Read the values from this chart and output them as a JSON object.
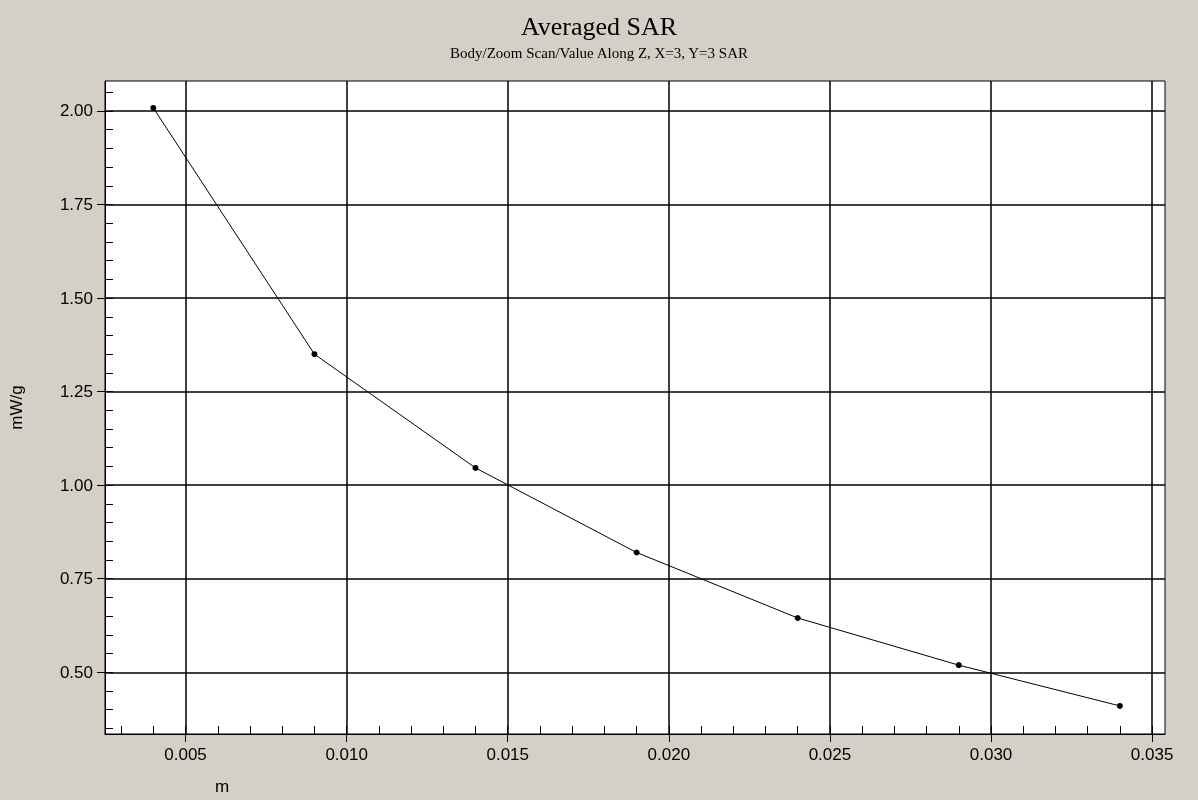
{
  "chart_data": {
    "type": "line",
    "title": "Averaged SAR",
    "subtitle": "Body/Zoom Scan/Value Along Z, X=3, Y=3 SAR",
    "xlabel": "m",
    "ylabel": "mW/g",
    "x": [
      0.004,
      0.009,
      0.014,
      0.019,
      0.024,
      0.029,
      0.034
    ],
    "series": [
      {
        "color": "#000000",
        "values": [
          2.008,
          1.35,
          1.046,
          0.82,
          0.645,
          0.519,
          0.41
        ]
      }
    ],
    "xlim": [
      0.0025,
      0.0354
    ],
    "ylim": [
      0.335,
      2.08
    ],
    "xticks": [
      {
        "value": 0.003,
        "label": null
      },
      {
        "value": 0.004,
        "label": null
      },
      0.005,
      {
        "value": 0.006,
        "label": null
      },
      {
        "value": 0.007,
        "label": null
      },
      {
        "value": 0.008,
        "label": null
      },
      {
        "value": 0.009,
        "label": null
      },
      {
        "value": 0.01,
        "label": "0.010"
      },
      {
        "value": 0.011,
        "label": null
      },
      {
        "value": 0.012,
        "label": null
      },
      {
        "value": 0.013,
        "label": null
      },
      {
        "value": 0.014,
        "label": null
      },
      0.015,
      {
        "value": 0.016,
        "label": null
      },
      {
        "value": 0.017,
        "label": null
      },
      {
        "value": 0.018,
        "label": null
      },
      {
        "value": 0.019,
        "label": null
      },
      {
        "value": 0.02,
        "label": "0.020"
      },
      {
        "value": 0.021,
        "label": null
      },
      {
        "value": 0.022,
        "label": null
      },
      {
        "value": 0.023,
        "label": null
      },
      {
        "value": 0.024,
        "label": null
      },
      0.025,
      {
        "value": 0.026,
        "label": null
      },
      {
        "value": 0.027,
        "label": null
      },
      {
        "value": 0.028,
        "label": null
      },
      {
        "value": 0.029,
        "label": null
      },
      {
        "value": 0.03,
        "label": "0.030"
      },
      {
        "value": 0.031,
        "label": null
      },
      {
        "value": 0.032,
        "label": null
      },
      {
        "value": 0.033,
        "label": null
      },
      {
        "value": 0.034,
        "label": null
      },
      0.035
    ],
    "yticks": [
      {
        "value": 0.35,
        "label": null
      },
      {
        "value": 0.4,
        "label": null
      },
      {
        "value": 0.45,
        "label": null
      },
      {
        "value": 0.5,
        "label": "0.50"
      },
      {
        "value": 0.55,
        "label": null
      },
      {
        "value": 0.6,
        "label": null
      },
      {
        "value": 0.65,
        "label": null
      },
      {
        "value": 0.7,
        "label": null
      },
      {
        "value": 0.75,
        "label": "0.75"
      },
      {
        "value": 0.8,
        "label": null
      },
      {
        "value": 0.85,
        "label": null
      },
      {
        "value": 0.9,
        "label": null
      },
      {
        "value": 0.95,
        "label": null
      },
      {
        "value": 1.0,
        "label": "1.00"
      },
      {
        "value": 1.05,
        "label": null
      },
      {
        "value": 1.1,
        "label": null
      },
      {
        "value": 1.15,
        "label": null
      },
      {
        "value": 1.2,
        "label": null
      },
      {
        "value": 1.25,
        "label": "1.25"
      },
      {
        "value": 1.3,
        "label": null
      },
      {
        "value": 1.35,
        "label": null
      },
      {
        "value": 1.4,
        "label": null
      },
      {
        "value": 1.45,
        "label": null
      },
      {
        "value": 1.5,
        "label": "1.50"
      },
      {
        "value": 1.55,
        "label": null
      },
      {
        "value": 1.6,
        "label": null
      },
      {
        "value": 1.65,
        "label": null
      },
      {
        "value": 1.7,
        "label": null
      },
      {
        "value": 1.75,
        "label": "1.75"
      },
      {
        "value": 1.8,
        "label": null
      },
      {
        "value": 1.85,
        "label": null
      },
      {
        "value": 1.9,
        "label": null
      },
      {
        "value": 1.95,
        "label": null
      },
      {
        "value": 2.0,
        "label": "2.00"
      },
      {
        "value": 2.05,
        "label": null
      }
    ],
    "grid": true,
    "marker": "circle",
    "line_style": "solid"
  }
}
